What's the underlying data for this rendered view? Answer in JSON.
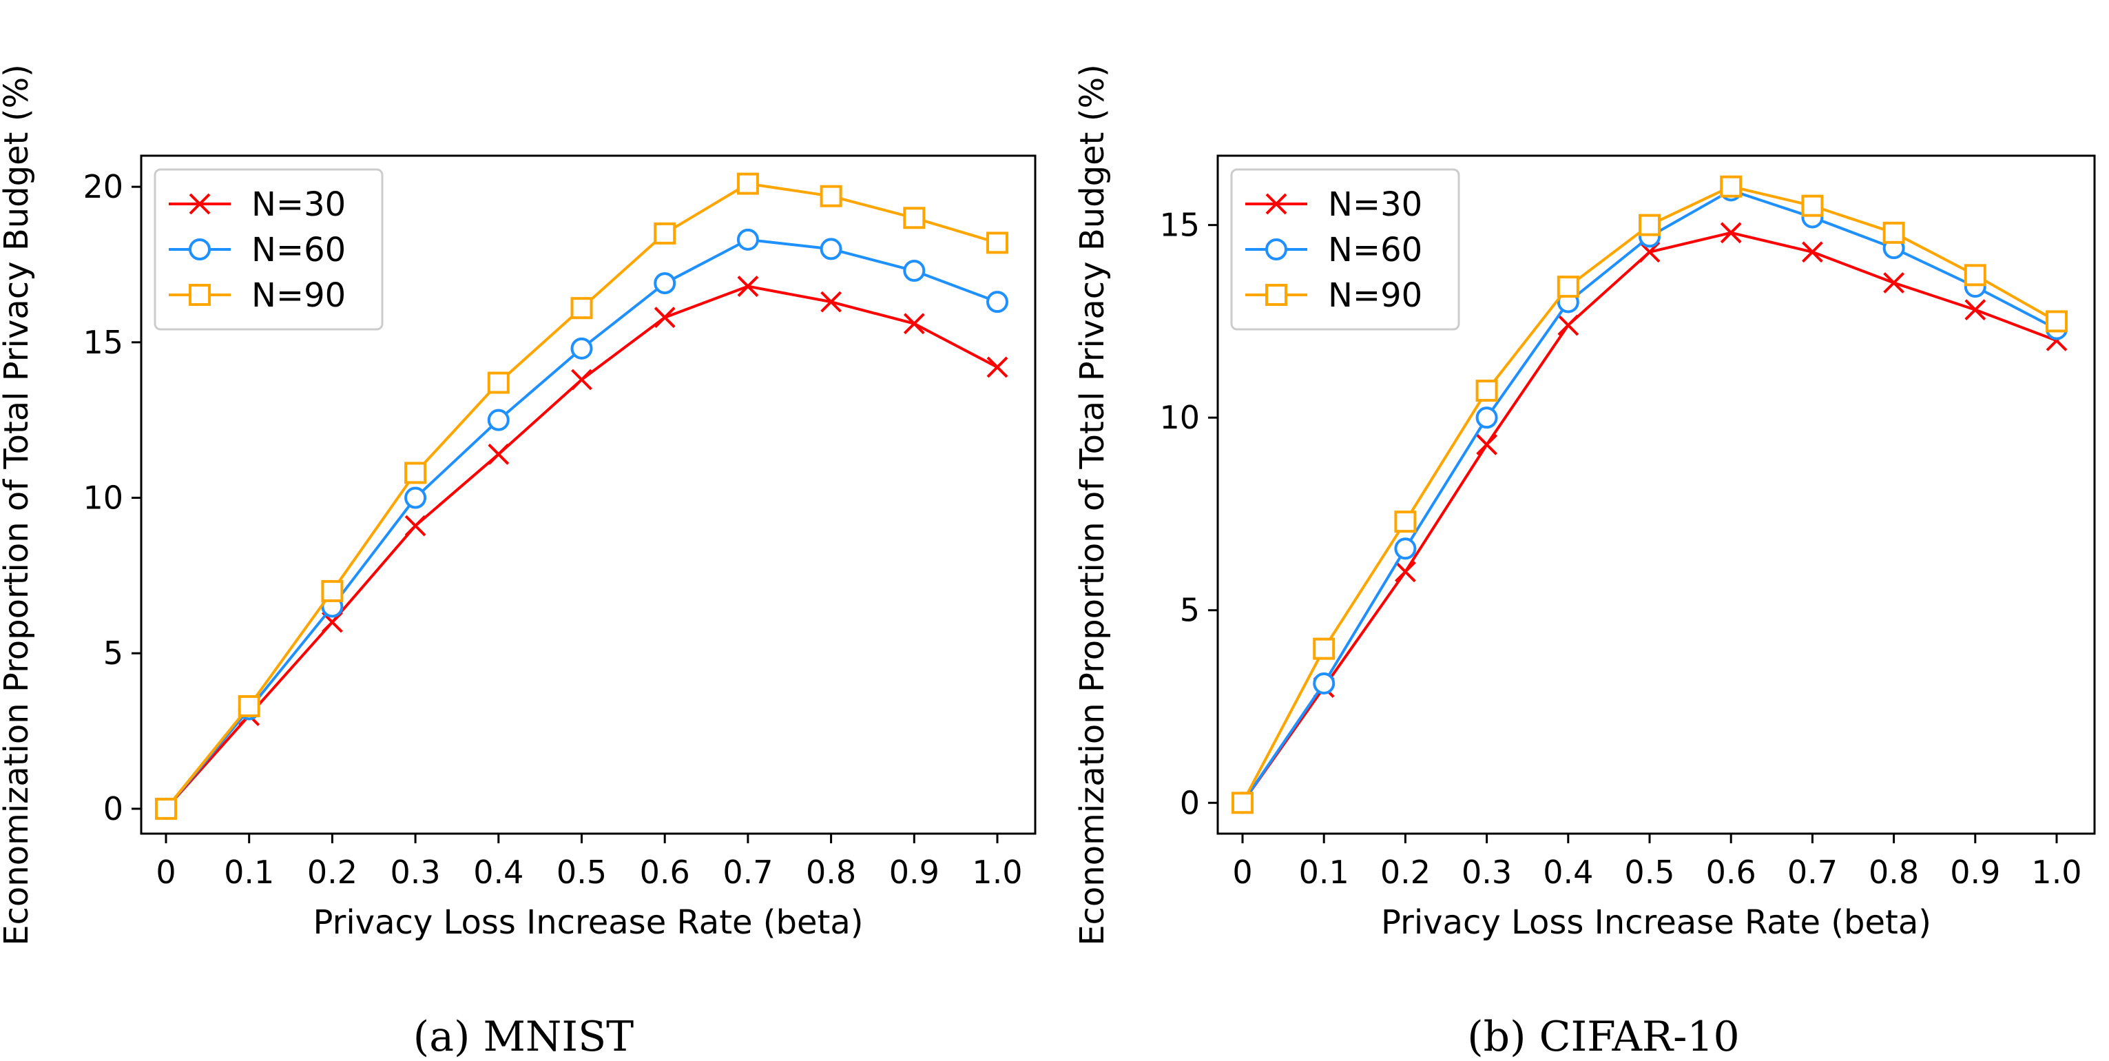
{
  "chart_data": [
    {
      "type": "line",
      "title": "",
      "caption": "(a)  MNIST",
      "xlabel": "Privacy Loss Increase Rate (beta)",
      "ylabel": "Economization Proportion of Total Privacy Budget (%)",
      "categories": [
        "0",
        "0.1",
        "0.2",
        "0.3",
        "0.4",
        "0.5",
        "0.6",
        "0.7",
        "0.8",
        "0.9",
        "1.0"
      ],
      "ylim": [
        -0.8,
        21
      ],
      "yticks": [
        0,
        5,
        10,
        15,
        20
      ],
      "ytick_labels": [
        "0",
        "5",
        "10",
        "15",
        "20"
      ],
      "grid": false,
      "legend_position": "top-left",
      "series": [
        {
          "name": "N=30",
          "marker": "x",
          "color": "#ff0000",
          "values": [
            0,
            3.0,
            6.0,
            9.1,
            11.4,
            13.8,
            15.8,
            16.8,
            16.3,
            15.6,
            14.2
          ]
        },
        {
          "name": "N=60",
          "marker": "circle",
          "color": "#1e90ff",
          "values": [
            0,
            3.2,
            6.5,
            10.0,
            12.5,
            14.8,
            16.9,
            18.3,
            18.0,
            17.3,
            16.3
          ]
        },
        {
          "name": "N=90",
          "marker": "square",
          "color": "#ffa500",
          "values": [
            0,
            3.3,
            7.0,
            10.8,
            13.7,
            16.1,
            18.5,
            20.1,
            19.7,
            19.0,
            18.2
          ]
        }
      ]
    },
    {
      "type": "line",
      "title": "",
      "caption": "(b)  CIFAR-10",
      "xlabel": "Privacy Loss Increase Rate (beta)",
      "ylabel": "Economization Proportion of Total Privacy Budget (%)",
      "categories": [
        "0",
        "0.1",
        "0.2",
        "0.3",
        "0.4",
        "0.5",
        "0.6",
        "0.7",
        "0.8",
        "0.9",
        "1.0"
      ],
      "ylim": [
        -0.8,
        16.8
      ],
      "yticks": [
        0,
        5,
        10,
        15
      ],
      "ytick_labels": [
        "0",
        "5",
        "10",
        "15"
      ],
      "grid": false,
      "legend_position": "top-left",
      "series": [
        {
          "name": "N=30",
          "marker": "x",
          "color": "#ff0000",
          "values": [
            0,
            3.0,
            6.0,
            9.3,
            12.4,
            14.3,
            14.8,
            14.3,
            13.5,
            12.8,
            12.0
          ]
        },
        {
          "name": "N=60",
          "marker": "circle",
          "color": "#1e90ff",
          "values": [
            0,
            3.1,
            6.6,
            10.0,
            13.0,
            14.7,
            15.9,
            15.2,
            14.4,
            13.4,
            12.3
          ]
        },
        {
          "name": "N=90",
          "marker": "square",
          "color": "#ffa500",
          "values": [
            0,
            4.0,
            7.3,
            10.7,
            13.4,
            15.0,
            16.0,
            15.5,
            14.8,
            13.7,
            12.5
          ]
        }
      ]
    }
  ]
}
